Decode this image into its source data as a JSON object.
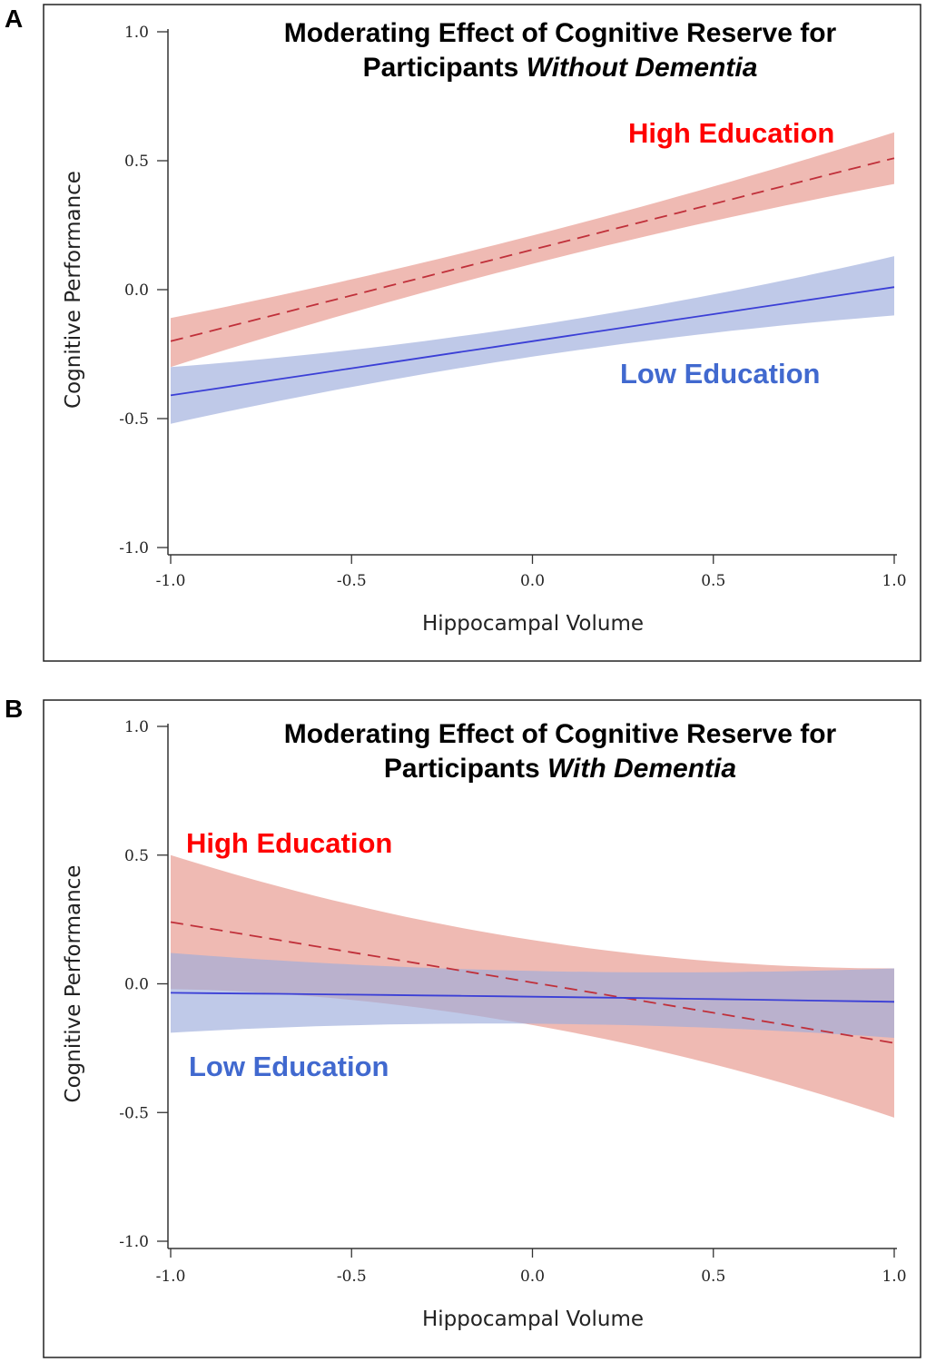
{
  "colors": {
    "high_line": "#c0303a",
    "high_band": "#eaa39a",
    "low_line": "#3b3fd6",
    "low_band": "#9dacdc",
    "high_label": "#ff0000",
    "low_label": "#4169cf"
  },
  "chart_data": [
    {
      "panel": "A",
      "type": "line",
      "title_line1": "Moderating Effect of Cognitive Reserve for",
      "title_line2_prefix": "Participants ",
      "title_line2_italic": "Without Dementia",
      "xlabel": "Hippocampal Volume",
      "ylabel": "Cognitive Performance",
      "xlim": [
        -1,
        1
      ],
      "ylim": [
        -1,
        1
      ],
      "xticks": [
        "-1.0",
        "-0.5",
        "0.0",
        "0.5",
        "1.0"
      ],
      "yticks": [
        "1.0",
        "0.5",
        "0.0",
        "-0.5",
        "-1.0"
      ],
      "series": [
        {
          "name": "High Education",
          "style": "dashed",
          "x": [
            -1,
            0,
            1
          ],
          "y": [
            -0.2,
            0.155,
            0.51
          ],
          "lower": [
            -0.3,
            0.1,
            0.41
          ],
          "upper": [
            -0.11,
            0.21,
            0.61
          ]
        },
        {
          "name": "Low Education",
          "style": "solid",
          "x": [
            -1,
            0,
            1
          ],
          "y": [
            -0.41,
            -0.2,
            0.01
          ],
          "lower": [
            -0.52,
            -0.26,
            -0.1
          ],
          "upper": [
            -0.3,
            -0.14,
            0.13
          ]
        }
      ]
    },
    {
      "panel": "B",
      "type": "line",
      "title_line1": "Moderating Effect of Cognitive Reserve for",
      "title_line2_prefix": "Participants ",
      "title_line2_italic": "With Dementia",
      "xlabel": "Hippocampal Volume",
      "ylabel": "Cognitive Performance",
      "xlim": [
        -1,
        1
      ],
      "ylim": [
        -1,
        1
      ],
      "xticks": [
        "-1.0",
        "-0.5",
        "0.0",
        "0.5",
        "1.0"
      ],
      "yticks": [
        "1.0",
        "0.5",
        "0.0",
        "-0.5",
        "-1.0"
      ],
      "series": [
        {
          "name": "High Education",
          "style": "dashed",
          "x": [
            -1,
            0,
            1
          ],
          "y": [
            0.24,
            0.005,
            -0.23
          ],
          "lower": [
            -0.02,
            -0.16,
            -0.52
          ],
          "upper": [
            0.5,
            0.17,
            0.06
          ]
        },
        {
          "name": "Low Education",
          "style": "solid",
          "x": [
            -1,
            0,
            1
          ],
          "y": [
            -0.035,
            -0.05,
            -0.07
          ],
          "lower": [
            -0.19,
            -0.155,
            -0.21
          ],
          "upper": [
            0.12,
            0.05,
            0.06
          ]
        }
      ]
    }
  ]
}
